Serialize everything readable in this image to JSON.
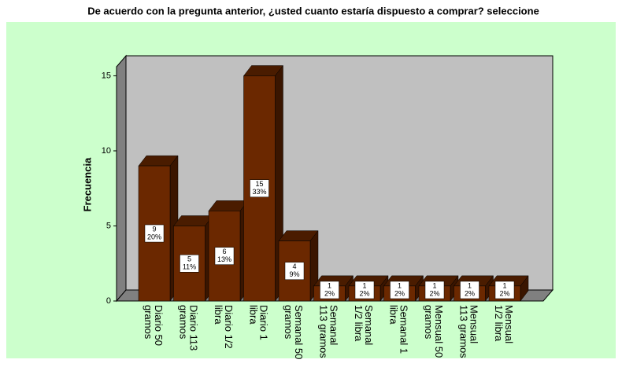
{
  "chart_data": {
    "type": "bar3d",
    "title": "De acuerdo con la pregunta anterior, ¿usted cuanto estaría dispuesto a comprar? seleccione",
    "y_label": "Frecuencia",
    "categories": [
      "Diario 50 gramos",
      "Diario 113 gramos",
      "Diario 1/2 libra",
      "Diario 1 libra",
      "Semanal 50 gramos",
      "Semanal 113 gramos",
      "Semanal 1/2 libra",
      "Semanal 1 libra",
      "Mensual 50 gramos",
      "Mensual 113 gramos",
      "Mensual 1/2 libra"
    ],
    "values": [
      9,
      5,
      6,
      15,
      4,
      1,
      1,
      1,
      1,
      1,
      1
    ],
    "percent_labels": [
      "20%",
      "11%",
      "13%",
      "33%",
      "9%",
      "2%",
      "2%",
      "2%",
      "2%",
      "2%",
      "2%"
    ],
    "color": "#6b2800",
    "ylim": [
      0,
      15.6
    ],
    "yticks": [
      0,
      5,
      10,
      15
    ]
  }
}
